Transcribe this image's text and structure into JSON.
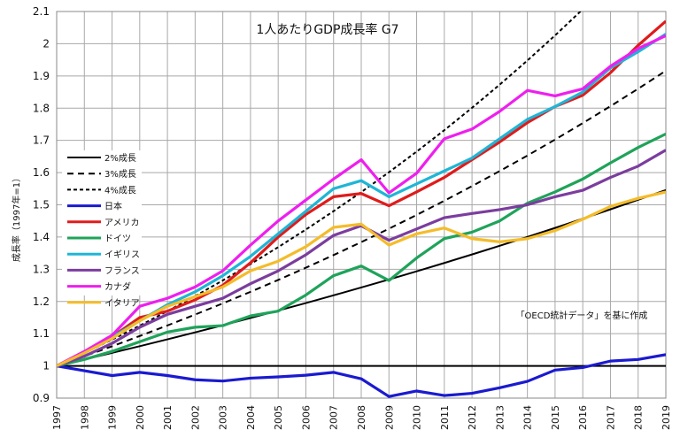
{
  "chart_data": {
    "type": "line",
    "title": "1人あたりGDP成長率 G7",
    "ylabel": "成長率（1997年=1）",
    "xlabel": "",
    "note": "「OECD統計データ」を基に作成",
    "ylim": [
      0.9,
      2.1
    ],
    "yticks": [
      0.9,
      1,
      1.1,
      1.2,
      1.3,
      1.4,
      1.5,
      1.6,
      1.7,
      1.8,
      1.9,
      2,
      2.1
    ],
    "grid": true,
    "legend_position": "left",
    "x": [
      "1997",
      "1998",
      "1999",
      "2000",
      "2001",
      "2002",
      "2003",
      "2004",
      "2005",
      "2006",
      "2007",
      "2008",
      "2009",
      "2010",
      "2011",
      "2012",
      "2013",
      "2014",
      "2015",
      "2016",
      "2017",
      "2018",
      "2019"
    ],
    "reference_lines": [
      {
        "name": "2%成長",
        "rate": 0.02,
        "color": "#000000",
        "style": "solid"
      },
      {
        "name": "3%成長",
        "rate": 0.03,
        "color": "#000000",
        "style": "dashed"
      },
      {
        "name": "4%成長",
        "rate": 0.04,
        "color": "#000000",
        "style": "dotted"
      }
    ],
    "series": [
      {
        "name": "日本",
        "color": "#1a1ad0",
        "values": [
          1.0,
          0.985,
          0.97,
          0.98,
          0.97,
          0.957,
          0.953,
          0.962,
          0.966,
          0.971,
          0.98,
          0.96,
          0.905,
          0.922,
          0.908,
          0.915,
          0.932,
          0.952,
          0.987,
          0.995,
          1.015,
          1.02,
          1.035
        ]
      },
      {
        "name": "アメリカ",
        "color": "#e01b1b",
        "values": [
          1.0,
          1.04,
          1.09,
          1.15,
          1.17,
          1.205,
          1.25,
          1.32,
          1.4,
          1.47,
          1.525,
          1.535,
          1.497,
          1.54,
          1.585,
          1.64,
          1.695,
          1.755,
          1.805,
          1.84,
          1.91,
          1.995,
          2.07
        ]
      },
      {
        "name": "ドイツ",
        "color": "#1fa35a",
        "values": [
          1.0,
          1.02,
          1.045,
          1.075,
          1.105,
          1.12,
          1.125,
          1.155,
          1.17,
          1.22,
          1.28,
          1.31,
          1.265,
          1.335,
          1.395,
          1.415,
          1.45,
          1.505,
          1.54,
          1.58,
          1.63,
          1.678,
          1.72
        ]
      },
      {
        "name": "イギリス",
        "color": "#1fb5d6",
        "values": [
          1.0,
          1.04,
          1.09,
          1.14,
          1.19,
          1.23,
          1.28,
          1.34,
          1.41,
          1.48,
          1.55,
          1.575,
          1.525,
          1.565,
          1.605,
          1.645,
          1.705,
          1.765,
          1.805,
          1.85,
          1.925,
          1.975,
          2.03
        ]
      },
      {
        "name": "フランス",
        "color": "#7b3d9e",
        "values": [
          1.0,
          1.03,
          1.07,
          1.12,
          1.16,
          1.185,
          1.21,
          1.255,
          1.295,
          1.345,
          1.405,
          1.435,
          1.39,
          1.425,
          1.46,
          1.473,
          1.485,
          1.5,
          1.525,
          1.545,
          1.585,
          1.62,
          1.67
        ]
      },
      {
        "name": "カナダ",
        "color": "#ee1fee",
        "values": [
          1.0,
          1.045,
          1.095,
          1.185,
          1.21,
          1.245,
          1.295,
          1.375,
          1.45,
          1.515,
          1.58,
          1.64,
          1.537,
          1.598,
          1.705,
          1.735,
          1.79,
          1.855,
          1.838,
          1.86,
          1.93,
          1.985,
          2.025
        ]
      },
      {
        "name": "イタリア",
        "color": "#f4bc2a",
        "values": [
          1.0,
          1.04,
          1.085,
          1.14,
          1.185,
          1.215,
          1.245,
          1.295,
          1.325,
          1.37,
          1.43,
          1.44,
          1.375,
          1.41,
          1.428,
          1.395,
          1.385,
          1.395,
          1.42,
          1.455,
          1.495,
          1.52,
          1.54
        ]
      }
    ]
  }
}
